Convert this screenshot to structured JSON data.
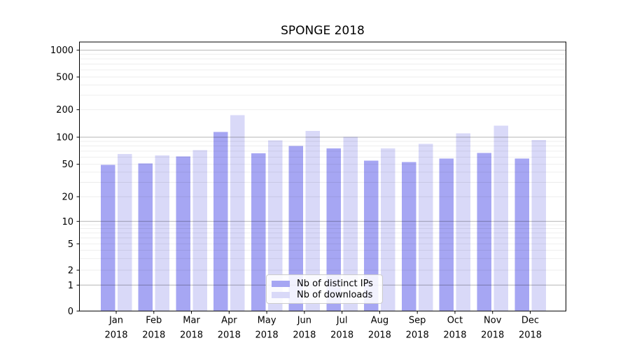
{
  "figure": {
    "background": "#ffffff"
  },
  "chart_data": {
    "type": "bar",
    "title": "SPONGE 2018",
    "categories": [
      "Jan 2018",
      "Feb 2018",
      "Mar 2018",
      "Apr 2018",
      "May 2018",
      "Jun 2018",
      "Jul 2018",
      "Aug 2018",
      "Sep 2018",
      "Oct 2018",
      "Nov 2018",
      "Dec 2018"
    ],
    "series": [
      {
        "name": "Nb of distinct IPs",
        "color": "#a6a6f3",
        "values": [
          49,
          51,
          61,
          114,
          66,
          80,
          75,
          55,
          53,
          58,
          67,
          58
        ]
      },
      {
        "name": "Nb of downloads",
        "color": "#d9d9f8",
        "values": [
          65,
          63,
          72,
          175,
          92,
          117,
          101,
          75,
          84,
          110,
          134,
          93
        ]
      }
    ],
    "xlabel": "",
    "ylabel": "",
    "yscale": "symlog",
    "yticks": [
      0,
      1,
      2,
      5,
      10,
      20,
      50,
      100,
      200,
      500,
      1000
    ],
    "ylim": [
      0,
      1250
    ],
    "grid": "on",
    "legend_position": "lower center"
  },
  "colors": {
    "grid_major": "rgba(0,0,0,0.29)",
    "grid_minor": "rgba(0,0,0,0.075)",
    "axis": "#000000",
    "tick_label": "#000000",
    "legend_border": "#cccccc"
  }
}
